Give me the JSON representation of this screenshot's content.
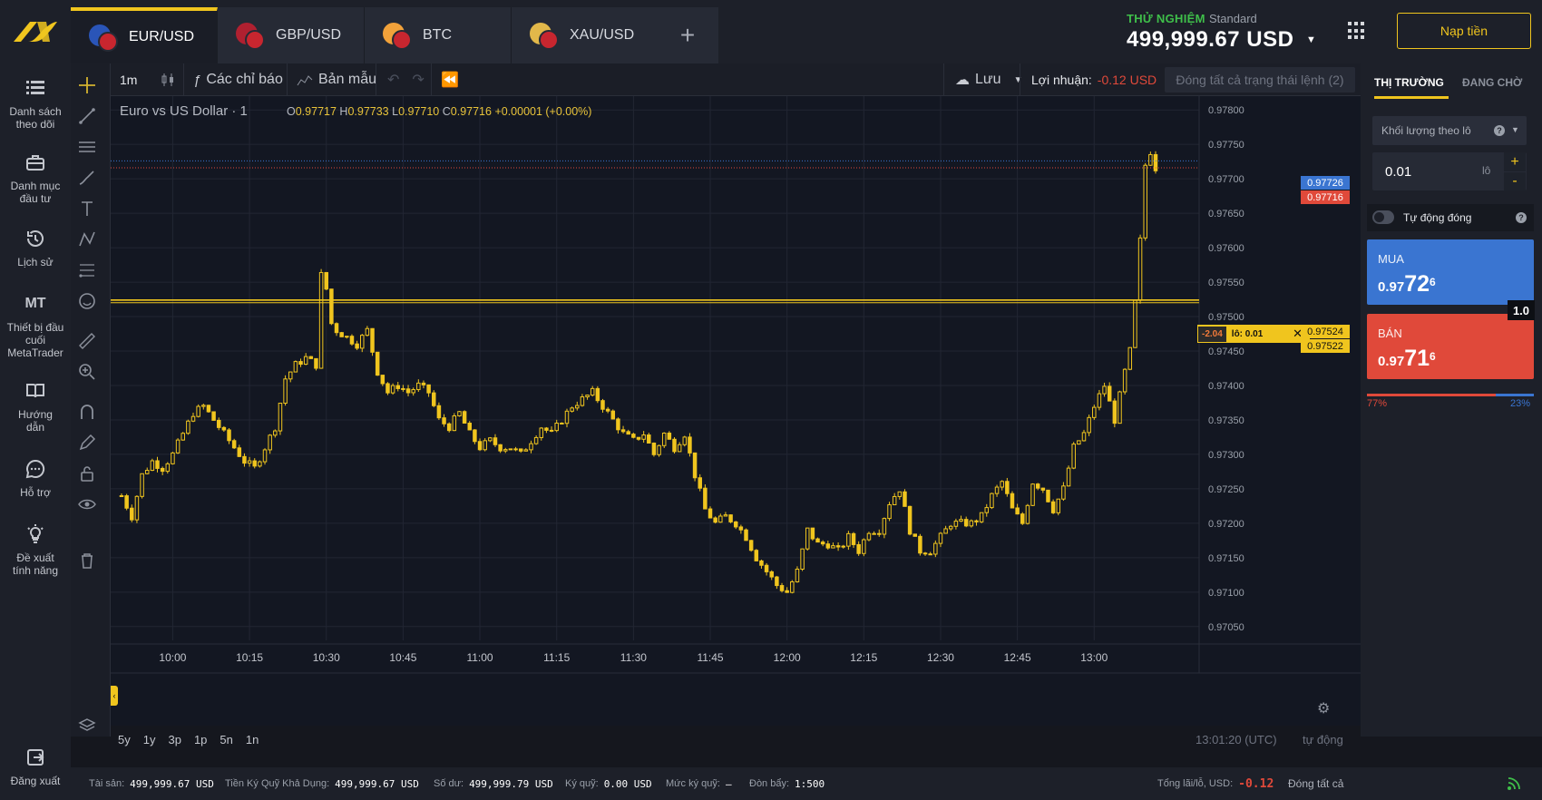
{
  "header": {
    "tabs": [
      {
        "label": "EUR/USD",
        "flag1": "#2a55b8",
        "flag2": "#c8262f",
        "active": true
      },
      {
        "label": "GBP/USD",
        "flag1": "#b02030",
        "flag2": "#c8262f",
        "active": false
      },
      {
        "label": "BTC",
        "flag1": "#f2a23a",
        "flag2": "#c8262f",
        "active": false
      },
      {
        "label": "XAU/USD",
        "flag1": "#e2b84a",
        "flag2": "#c8262f",
        "active": false
      }
    ],
    "add_tab": "+",
    "account_mode": "THỬ NGHIỆM",
    "account_type": "Standard",
    "balance": "499,999.67 USD",
    "deposit_label": "Nạp tiền",
    "accent": "#f0c51e"
  },
  "sidebar": {
    "items": [
      {
        "label": "Danh sách theo dõi",
        "icon": "list-icon"
      },
      {
        "label": "Danh mục đầu tư",
        "icon": "briefcase-icon"
      },
      {
        "label": "Lịch sử",
        "icon": "history-icon"
      },
      {
        "label": "Thiết bị đầu cuối MetaTrader",
        "icon": "mt-icon",
        "icon_text": "MT"
      },
      {
        "label": "Hướng dẫn",
        "icon": "book-icon"
      },
      {
        "label": "Hỗ trợ",
        "icon": "chat-icon"
      },
      {
        "label": "Đề xuất tính năng",
        "icon": "lightbulb-icon"
      }
    ],
    "logout": "Đăng xuất"
  },
  "toolbar": {
    "timeframe": "1m",
    "indicators": "Các chỉ báo",
    "templates": "Bản mẫu",
    "save": "Lưu",
    "profit_label": "Lợi nhuận:",
    "profit_value": "-0.12 USD",
    "close_all_positions": "Đóng tất cả trạng thái lệnh (2)"
  },
  "chart": {
    "symbol_title": "Euro vs US Dollar · 1",
    "ohlc": {
      "o": "0.97717",
      "h": "0.97733",
      "l": "0.97710",
      "c": "0.97716",
      "change": "+0.00001 (+0.00%)"
    },
    "position_pl": "-2.04",
    "position_lot": "lô: 0.01",
    "price_tags": {
      "ask": "0.97726",
      "bid": "0.97716",
      "pos1": "0.97524",
      "pos2": "0.97522"
    },
    "ranges": [
      "5y",
      "1y",
      "3p",
      "1p",
      "5n",
      "1n"
    ],
    "clock": "13:01:20 (UTC)",
    "auto_scale": "tự động"
  },
  "chart_data": {
    "type": "candlestick",
    "title": "Euro vs US Dollar · 1",
    "x_ticks": [
      "10:00",
      "10:15",
      "10:30",
      "10:45",
      "11:00",
      "11:15",
      "11:30",
      "11:45",
      "12:00",
      "12:15",
      "12:30",
      "12:45",
      "13:00"
    ],
    "y_ticks": [
      "0.97800",
      "0.97750",
      "0.97700",
      "0.97650",
      "0.97600",
      "0.97550",
      "0.97500",
      "0.97450",
      "0.97400",
      "0.97350",
      "0.97300",
      "0.97250",
      "0.97200",
      "0.97150",
      "0.97100",
      "0.97050"
    ],
    "ylim": [
      0.9703,
      0.9782
    ],
    "x_start_minute": 590,
    "x_end_minute": 792,
    "position_line": 0.97524,
    "ask": 0.97726,
    "bid": 0.97716,
    "close_path": [
      [
        590,
        0.9724
      ],
      [
        592,
        0.9721
      ],
      [
        594,
        0.9727
      ],
      [
        596,
        0.9729
      ],
      [
        598,
        0.9728
      ],
      [
        600,
        0.973
      ],
      [
        602,
        0.9733
      ],
      [
        604,
        0.9736
      ],
      [
        606,
        0.9737
      ],
      [
        608,
        0.9735
      ],
      [
        610,
        0.9733
      ],
      [
        612,
        0.9731
      ],
      [
        614,
        0.9729
      ],
      [
        616,
        0.9728
      ],
      [
        618,
        0.9731
      ],
      [
        620,
        0.9734
      ],
      [
        622,
        0.9741
      ],
      [
        624,
        0.9743
      ],
      [
        626,
        0.9744
      ],
      [
        628,
        0.9743
      ],
      [
        629,
        0.9756
      ],
      [
        630,
        0.9754
      ],
      [
        631,
        0.9749
      ],
      [
        632,
        0.9748
      ],
      [
        634,
        0.9747
      ],
      [
        636,
        0.9746
      ],
      [
        638,
        0.9748
      ],
      [
        640,
        0.9742
      ],
      [
        642,
        0.9739
      ],
      [
        644,
        0.974
      ],
      [
        646,
        0.9739
      ],
      [
        648,
        0.974
      ],
      [
        650,
        0.9739
      ],
      [
        652,
        0.9735
      ],
      [
        654,
        0.9734
      ],
      [
        656,
        0.9736
      ],
      [
        658,
        0.9733
      ],
      [
        660,
        0.9731
      ],
      [
        662,
        0.9732
      ],
      [
        664,
        0.9731
      ],
      [
        666,
        0.9731
      ],
      [
        668,
        0.973
      ],
      [
        670,
        0.9732
      ],
      [
        672,
        0.9734
      ],
      [
        674,
        0.9733
      ],
      [
        676,
        0.9735
      ],
      [
        678,
        0.9737
      ],
      [
        680,
        0.9738
      ],
      [
        682,
        0.9739
      ],
      [
        684,
        0.9737
      ],
      [
        686,
        0.9735
      ],
      [
        688,
        0.9733
      ],
      [
        690,
        0.9732
      ],
      [
        692,
        0.9733
      ],
      [
        694,
        0.973
      ],
      [
        696,
        0.9733
      ],
      [
        698,
        0.9731
      ],
      [
        700,
        0.9733
      ],
      [
        702,
        0.9727
      ],
      [
        704,
        0.9722
      ],
      [
        706,
        0.972
      ],
      [
        708,
        0.9721
      ],
      [
        710,
        0.972
      ],
      [
        712,
        0.9718
      ],
      [
        714,
        0.9715
      ],
      [
        716,
        0.9713
      ],
      [
        718,
        0.9711
      ],
      [
        720,
        0.971
      ],
      [
        722,
        0.9713
      ],
      [
        724,
        0.9719
      ],
      [
        726,
        0.9717
      ],
      [
        728,
        0.9717
      ],
      [
        730,
        0.9716
      ],
      [
        732,
        0.9718
      ],
      [
        734,
        0.9716
      ],
      [
        736,
        0.9719
      ],
      [
        738,
        0.9719
      ],
      [
        740,
        0.9723
      ],
      [
        742,
        0.9725
      ],
      [
        744,
        0.9719
      ],
      [
        746,
        0.9716
      ],
      [
        748,
        0.9716
      ],
      [
        750,
        0.9718
      ],
      [
        752,
        0.972
      ],
      [
        754,
        0.972
      ],
      [
        756,
        0.972
      ],
      [
        758,
        0.9721
      ],
      [
        760,
        0.9724
      ],
      [
        762,
        0.9726
      ],
      [
        764,
        0.9722
      ],
      [
        766,
        0.972
      ],
      [
        768,
        0.9726
      ],
      [
        770,
        0.9725
      ],
      [
        772,
        0.9722
      ],
      [
        774,
        0.9725
      ],
      [
        776,
        0.9731
      ],
      [
        778,
        0.9733
      ],
      [
        780,
        0.9737
      ],
      [
        782,
        0.974
      ],
      [
        784,
        0.9735
      ],
      [
        786,
        0.9742
      ],
      [
        787,
        0.9745
      ],
      [
        788,
        0.9752
      ],
      [
        789,
        0.9761
      ],
      [
        790,
        0.9772
      ],
      [
        791,
        0.9774
      ],
      [
        792,
        0.97716
      ]
    ]
  },
  "right_panel": {
    "tabs": [
      {
        "label": "THỊ TRƯỜNG",
        "active": true
      },
      {
        "label": "ĐANG CHỜ",
        "active": false
      }
    ],
    "volume_select": "Khối lượng theo lô",
    "lot_value": "0.01",
    "lot_unit": "lô",
    "auto_close": "Tự động đóng",
    "buy": {
      "label": "MUA",
      "prefix": "0.97",
      "big": "72",
      "sup": "6",
      "color": "#3a75d1"
    },
    "sell": {
      "label": "BÁN",
      "prefix": "0.97",
      "big": "71",
      "sup": "6",
      "color": "#e0493a"
    },
    "spread": "1.0",
    "sentiment": {
      "sell_pct": "77%",
      "buy_pct": "23%",
      "sell_fraction": 0.77
    }
  },
  "status": {
    "assets_label": "Tài sản:",
    "assets": "499,999.67 USD",
    "free_margin_label": "Tiền Ký Quỹ Khả Dụng:",
    "free_margin": "499,999.67 USD",
    "balance_label": "Số dư:",
    "balance": "499,999.79 USD",
    "margin_label": "Ký quỹ:",
    "margin": "0.00 USD",
    "margin_level_label": "Mức ký quỹ:",
    "margin_level": "–",
    "leverage_label": "Đòn bẩy:",
    "leverage": "1:500",
    "total_pl_label": "Tổng lãi/lỗ, USD:",
    "total_pl": "-0.12",
    "close_all": "Đóng tất cả"
  }
}
